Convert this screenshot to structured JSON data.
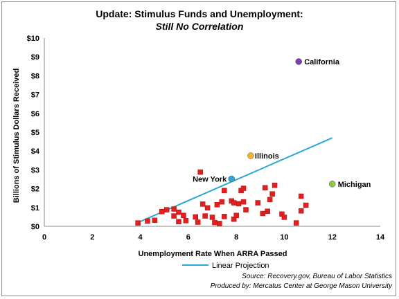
{
  "chart_data": {
    "type": "scatter",
    "title": "Update: Stimulus Funds and Unemployment:",
    "subtitle": "Still No Correlation",
    "xlabel": "Unemployment Rate When ARRA Passed",
    "ylabel": "Billions of Stimulus Dollars Received",
    "xlim": [
      0,
      14
    ],
    "ylim": [
      0,
      10
    ],
    "x_ticks": [
      "0",
      "2",
      "4",
      "6",
      "8",
      "10",
      "12",
      "14"
    ],
    "y_ticks": [
      "$0",
      "$1",
      "$2",
      "$3",
      "$4",
      "$5",
      "$6",
      "$7",
      "$8",
      "$9",
      "$10"
    ],
    "grid": false,
    "series": [
      {
        "marker": "square",
        "color": "#e02020",
        "points": [
          {
            "x": 3.9,
            "y": 0.18
          },
          {
            "x": 4.3,
            "y": 0.28
          },
          {
            "x": 4.6,
            "y": 0.32
          },
          {
            "x": 4.9,
            "y": 0.78
          },
          {
            "x": 5.1,
            "y": 0.88
          },
          {
            "x": 5.4,
            "y": 0.92
          },
          {
            "x": 5.4,
            "y": 0.55
          },
          {
            "x": 5.6,
            "y": 0.75
          },
          {
            "x": 5.6,
            "y": 0.25
          },
          {
            "x": 5.8,
            "y": 0.58
          },
          {
            "x": 5.9,
            "y": 0.3
          },
          {
            "x": 6.3,
            "y": 0.5
          },
          {
            "x": 6.4,
            "y": 0.22
          },
          {
            "x": 6.5,
            "y": 2.88
          },
          {
            "x": 6.6,
            "y": 1.18
          },
          {
            "x": 6.7,
            "y": 0.55
          },
          {
            "x": 6.8,
            "y": 0.98
          },
          {
            "x": 7.0,
            "y": 0.48
          },
          {
            "x": 7.1,
            "y": 0.2
          },
          {
            "x": 7.2,
            "y": 1.15
          },
          {
            "x": 7.3,
            "y": 0.15
          },
          {
            "x": 7.4,
            "y": 1.3
          },
          {
            "x": 7.5,
            "y": 1.9
          },
          {
            "x": 7.5,
            "y": 0.52
          },
          {
            "x": 7.8,
            "y": 1.35
          },
          {
            "x": 7.9,
            "y": 1.25
          },
          {
            "x": 7.9,
            "y": 0.38
          },
          {
            "x": 8.0,
            "y": 0.58
          },
          {
            "x": 8.1,
            "y": 1.2
          },
          {
            "x": 8.2,
            "y": 1.9
          },
          {
            "x": 8.3,
            "y": 2.02
          },
          {
            "x": 8.3,
            "y": 1.3
          },
          {
            "x": 8.4,
            "y": 0.88
          },
          {
            "x": 8.9,
            "y": 1.25
          },
          {
            "x": 9.1,
            "y": 0.68
          },
          {
            "x": 9.2,
            "y": 2.05
          },
          {
            "x": 9.3,
            "y": 0.8
          },
          {
            "x": 9.4,
            "y": 1.42
          },
          {
            "x": 9.5,
            "y": 1.72
          },
          {
            "x": 9.6,
            "y": 2.18
          },
          {
            "x": 9.9,
            "y": 0.65
          },
          {
            "x": 10.0,
            "y": 0.48
          },
          {
            "x": 10.5,
            "y": 0.18
          },
          {
            "x": 10.7,
            "y": 1.6
          },
          {
            "x": 10.7,
            "y": 0.82
          },
          {
            "x": 10.9,
            "y": 1.12
          }
        ]
      },
      {
        "marker": "circle",
        "points": [
          {
            "x": 10.6,
            "y": 8.75,
            "label": "California",
            "color": "#7a3fa8"
          },
          {
            "x": 8.6,
            "y": 3.75,
            "label": "Illinois",
            "color": "#f0b428"
          },
          {
            "x": 7.8,
            "y": 2.52,
            "label": "New York",
            "color": "#29a8d8"
          },
          {
            "x": 12.0,
            "y": 2.25,
            "label": "Michigan",
            "color": "#8cc850"
          }
        ]
      }
    ],
    "trendline": {
      "name": "Linear Projection",
      "color": "#29a8d8",
      "points": [
        {
          "x": 3.9,
          "y": 0.2
        },
        {
          "x": 12.0,
          "y": 4.7
        }
      ]
    },
    "legend_position": "bottom-left"
  },
  "source_line": "Source: Recovery.gov, Bureau of Labor Statistics",
  "produced_line": "Produced by: Mercatus Center at George Mason University"
}
